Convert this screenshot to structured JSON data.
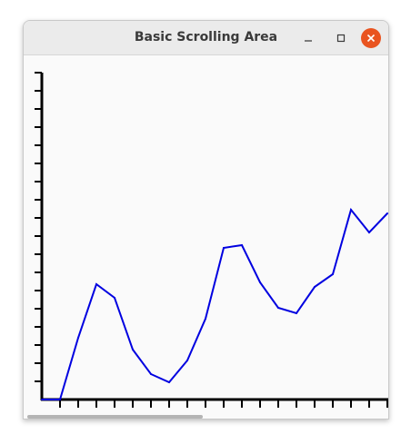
{
  "window": {
    "title": "Basic Scrolling Area",
    "close_color": "#e95420"
  },
  "icons": {
    "minimize": "minimize-icon",
    "maximize": "maximize-icon",
    "close": "close-icon"
  },
  "chart_data": {
    "type": "line",
    "line_color": "#0000e0",
    "x": [
      0,
      1,
      2,
      3,
      4,
      5,
      6,
      7,
      8,
      9,
      10,
      11,
      12,
      13,
      14,
      15,
      16,
      17,
      18,
      19
    ],
    "y": [
      0,
      0,
      68,
      127,
      112,
      55,
      28,
      19,
      43,
      89,
      167,
      170,
      129,
      101,
      95,
      124,
      138,
      209,
      184,
      205
    ],
    "x_ticks": 19,
    "y_ticks": 18
  }
}
